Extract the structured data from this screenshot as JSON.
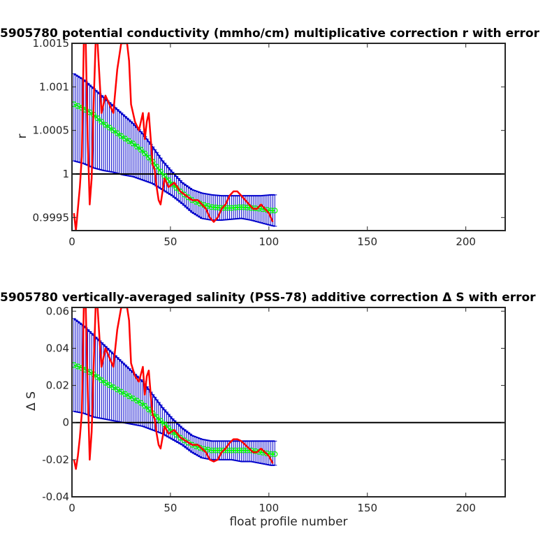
{
  "chart_data": [
    {
      "type": "line",
      "title": "5905780 potential conductivity (mmho/cm) multiplicative correction r with error",
      "xlabel": "",
      "ylabel": "r",
      "xlim": [
        0,
        220
      ],
      "ylim": [
        0.99935,
        1.0015
      ],
      "xticks": [
        0,
        50,
        100,
        150,
        200
      ],
      "xtick_labels": [
        "0",
        "50",
        "100",
        "150",
        "200"
      ],
      "yticks": [
        0.9995,
        1.0,
        1.0005,
        1.001,
        1.0015
      ],
      "ytick_labels": [
        "0.9995",
        "1",
        "1.0005",
        "1.001",
        "1.0015"
      ],
      "reference_line": 1.0,
      "grid": false,
      "colors": {
        "raw": "#ff0000",
        "fit": "#00ff00",
        "error": "#0000cc",
        "reference": "#000000"
      },
      "series": [
        {
          "role": "raw",
          "x": [
            1,
            2,
            3,
            4,
            5,
            6,
            7,
            8,
            9,
            10,
            11,
            12,
            13,
            14,
            15,
            17,
            19,
            21,
            23,
            25,
            26,
            27,
            28,
            29,
            30,
            32,
            34,
            36,
            37,
            38,
            39,
            40,
            41,
            42,
            43,
            44,
            45,
            46,
            47,
            49,
            52,
            55,
            58,
            61,
            64,
            66,
            68,
            70,
            72,
            74,
            76,
            78,
            80,
            82,
            84,
            86,
            88,
            90,
            92,
            94,
            96,
            98,
            100,
            102
          ],
          "y": [
            0.99955,
            0.99935,
            0.9996,
            0.99985,
            1.0002,
            1.0015,
            1.0015,
            1.0004,
            0.99965,
            0.99995,
            1.0008,
            1.0015,
            1.0015,
            1.0011,
            1.0007,
            1.0009,
            1.0008,
            1.0007,
            1.0012,
            1.0015,
            1.0015,
            1.0015,
            1.0015,
            1.0013,
            1.0008,
            1.0006,
            1.0005,
            1.0007,
            1.0004,
            1.0006,
            1.0007,
            1.0004,
            1.0001,
            1.00005,
            0.99985,
            0.9997,
            0.99965,
            0.9998,
            0.99995,
            0.99985,
            0.9999,
            0.9998,
            0.99975,
            0.9997,
            0.9997,
            0.99965,
            0.9996,
            0.9995,
            0.99945,
            0.9995,
            0.9996,
            0.99965,
            0.99975,
            0.9998,
            0.9998,
            0.99975,
            0.9997,
            0.99965,
            0.9996,
            0.9996,
            0.99965,
            0.9996,
            0.99955,
            0.99945
          ]
        },
        {
          "role": "fit",
          "x": [
            1,
            6,
            11,
            16,
            21,
            26,
            31,
            36,
            41,
            46,
            51,
            56,
            61,
            66,
            71,
            76,
            81,
            86,
            91,
            96,
            101,
            103
          ],
          "y": [
            1.0008,
            1.00075,
            1.00068,
            1.00058,
            1.0005,
            1.00042,
            1.00035,
            1.00026,
            1.00014,
            1.0,
            0.99988,
            0.99978,
            0.9997,
            0.99965,
            0.99962,
            0.99961,
            0.99961,
            0.99962,
            0.99961,
            0.9996,
            0.99958,
            0.99958
          ]
        },
        {
          "role": "error_upper",
          "x": [
            1,
            6,
            11,
            16,
            21,
            26,
            31,
            36,
            41,
            46,
            51,
            56,
            61,
            66,
            71,
            76,
            81,
            86,
            91,
            96,
            101,
            103
          ],
          "y": [
            1.00115,
            1.00108,
            1.00098,
            1.00088,
            1.00078,
            1.00068,
            1.00058,
            1.00046,
            1.00031,
            1.00015,
            1.00002,
            0.9999,
            0.99982,
            0.99978,
            0.99976,
            0.99975,
            0.99975,
            0.99975,
            0.99975,
            0.99975,
            0.99976,
            0.99976
          ]
        },
        {
          "role": "error_lower",
          "x": [
            1,
            6,
            11,
            16,
            21,
            26,
            31,
            36,
            41,
            46,
            51,
            56,
            61,
            66,
            71,
            76,
            81,
            86,
            91,
            96,
            101,
            103
          ],
          "y": [
            1.00015,
            1.00012,
            1.00007,
            1.00004,
            1.00002,
            0.99999,
            0.99997,
            0.99993,
            0.99989,
            0.99982,
            0.99975,
            0.99966,
            0.99956,
            0.99949,
            0.99947,
            0.99947,
            0.99948,
            0.99949,
            0.99947,
            0.99944,
            0.99941,
            0.9994
          ]
        }
      ]
    },
    {
      "type": "line",
      "title": "5905780 vertically-averaged salinity (PSS-78) additive correction Δ S with error",
      "xlabel": "float profile number",
      "ylabel": "Δ S",
      "xlim": [
        0,
        220
      ],
      "ylim": [
        -0.04,
        0.062
      ],
      "xticks": [
        0,
        50,
        100,
        150,
        200
      ],
      "xtick_labels": [
        "0",
        "50",
        "100",
        "150",
        "200"
      ],
      "yticks": [
        -0.04,
        -0.02,
        0,
        0.02,
        0.04,
        0.06
      ],
      "ytick_labels": [
        "-0.04",
        "-0.02",
        "0",
        "0.02",
        "0.04",
        "0.06"
      ],
      "reference_line": 0,
      "grid": false,
      "colors": {
        "raw": "#ff0000",
        "fit": "#00ff00",
        "error": "#0000cc",
        "reference": "#000000"
      },
      "series": [
        {
          "role": "raw",
          "x": [
            1,
            2,
            3,
            4,
            5,
            6,
            7,
            8,
            9,
            10,
            11,
            12,
            13,
            14,
            15,
            17,
            19,
            21,
            23,
            25,
            26,
            27,
            28,
            29,
            30,
            32,
            34,
            36,
            37,
            38,
            39,
            40,
            41,
            42,
            43,
            44,
            45,
            46,
            47,
            49,
            52,
            55,
            58,
            61,
            64,
            66,
            68,
            70,
            72,
            74,
            76,
            78,
            80,
            82,
            84,
            86,
            88,
            90,
            92,
            94,
            96,
            98,
            100,
            102
          ],
          "y": [
            -0.02,
            -0.025,
            -0.018,
            -0.008,
            0.005,
            0.062,
            0.062,
            0.018,
            -0.02,
            -0.005,
            0.03,
            0.062,
            0.062,
            0.045,
            0.03,
            0.04,
            0.035,
            0.03,
            0.05,
            0.062,
            0.062,
            0.062,
            0.062,
            0.055,
            0.032,
            0.025,
            0.022,
            0.03,
            0.015,
            0.025,
            0.028,
            0.015,
            0.004,
            0.002,
            -0.006,
            -0.012,
            -0.014,
            -0.008,
            -0.002,
            -0.006,
            -0.004,
            -0.008,
            -0.01,
            -0.012,
            -0.012,
            -0.014,
            -0.016,
            -0.02,
            -0.021,
            -0.02,
            -0.016,
            -0.014,
            -0.011,
            -0.009,
            -0.009,
            -0.01,
            -0.012,
            -0.014,
            -0.016,
            -0.016,
            -0.014,
            -0.016,
            -0.018,
            -0.022
          ]
        },
        {
          "role": "fit",
          "x": [
            1,
            6,
            11,
            16,
            21,
            26,
            31,
            36,
            41,
            46,
            51,
            56,
            61,
            66,
            71,
            76,
            81,
            86,
            91,
            96,
            101,
            103
          ],
          "y": [
            0.031,
            0.029,
            0.026,
            0.022,
            0.019,
            0.016,
            0.013,
            0.01,
            0.005,
            0.0,
            -0.005,
            -0.009,
            -0.012,
            -0.014,
            -0.015,
            -0.015,
            -0.015,
            -0.015,
            -0.015,
            -0.016,
            -0.017,
            -0.017
          ]
        },
        {
          "role": "error_upper",
          "x": [
            1,
            6,
            11,
            16,
            21,
            26,
            31,
            36,
            41,
            46,
            51,
            56,
            61,
            66,
            71,
            76,
            81,
            86,
            91,
            96,
            101,
            103
          ],
          "y": [
            0.056,
            0.052,
            0.047,
            0.042,
            0.037,
            0.032,
            0.027,
            0.022,
            0.015,
            0.008,
            0.002,
            -0.003,
            -0.007,
            -0.009,
            -0.01,
            -0.01,
            -0.01,
            -0.01,
            -0.01,
            -0.01,
            -0.01,
            -0.01
          ]
        },
        {
          "role": "error_lower",
          "x": [
            1,
            6,
            11,
            16,
            21,
            26,
            31,
            36,
            41,
            46,
            51,
            56,
            61,
            66,
            71,
            76,
            81,
            86,
            91,
            96,
            101,
            103
          ],
          "y": [
            0.006,
            0.005,
            0.003,
            0.002,
            0.001,
            0.0,
            -0.001,
            -0.002,
            -0.004,
            -0.006,
            -0.009,
            -0.012,
            -0.016,
            -0.019,
            -0.02,
            -0.02,
            -0.02,
            -0.021,
            -0.021,
            -0.022,
            -0.023,
            -0.023
          ]
        }
      ]
    }
  ]
}
